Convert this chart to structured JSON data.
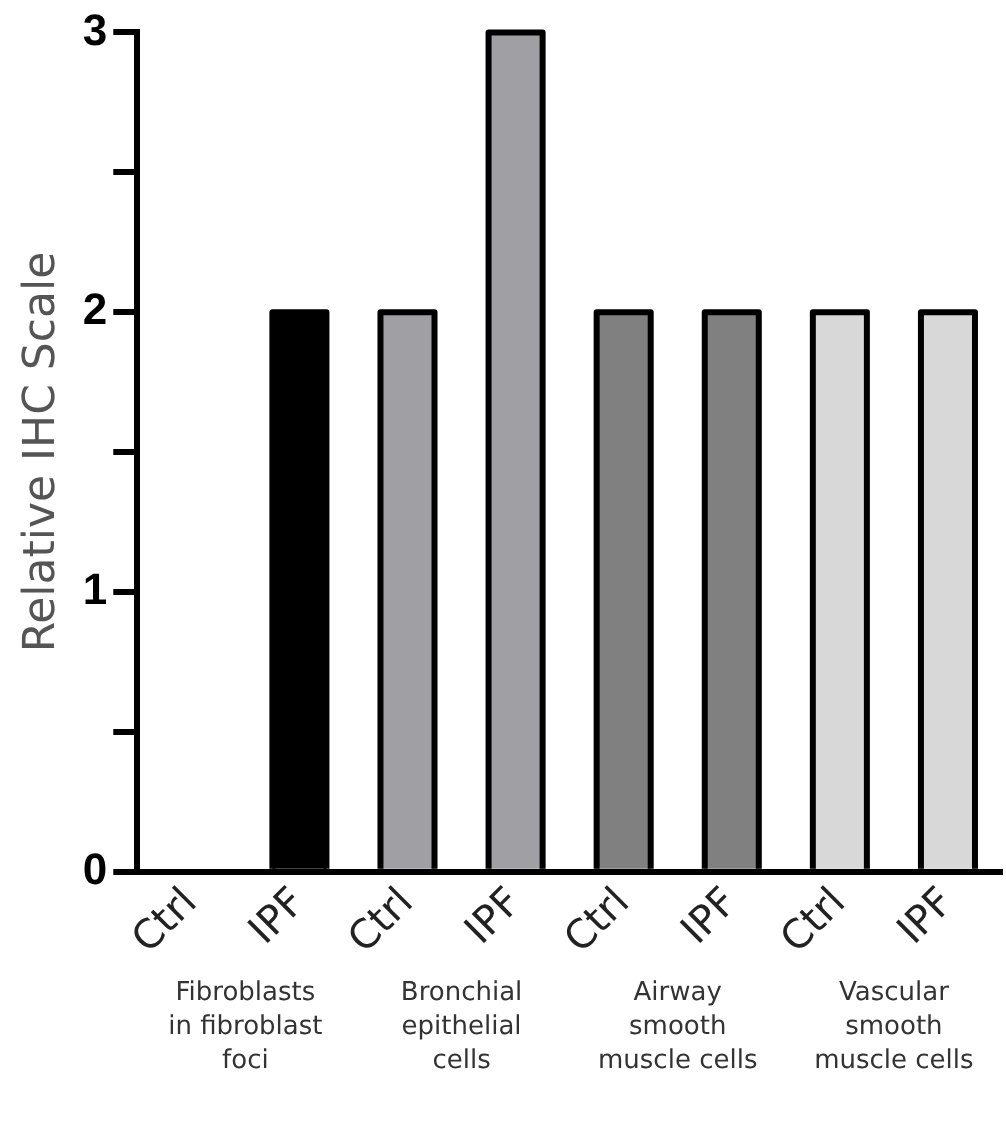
{
  "chart_data": {
    "type": "bar",
    "ylabel": "Relative IHC Scale",
    "categories": [
      "Ctrl",
      "IPF",
      "Ctrl",
      "IPF",
      "Ctrl",
      "IPF",
      "Ctrl",
      "IPF"
    ],
    "values": [
      0,
      2,
      2,
      3,
      2,
      2,
      2,
      2
    ],
    "colors": [
      "#000000",
      "#000000",
      "#a0a0a4",
      "#a0a0a4",
      "#808080",
      "#808080",
      "#d8d8d8",
      "#d8d8d8"
    ],
    "ylim": [
      0,
      3
    ],
    "yticks": [
      0,
      {
        "value": 0.5,
        "label": null
      },
      1,
      {
        "value": 1.5,
        "label": null
      },
      2,
      {
        "value": 2.5,
        "label": null
      },
      3
    ],
    "grid": false,
    "legend": false,
    "annotations": [
      "Fibroblasts in fibroblast foci",
      "Bronchial epithelial cells",
      "Airway smooth muscle cells",
      "Vascular smooth muscle cells"
    ]
  }
}
